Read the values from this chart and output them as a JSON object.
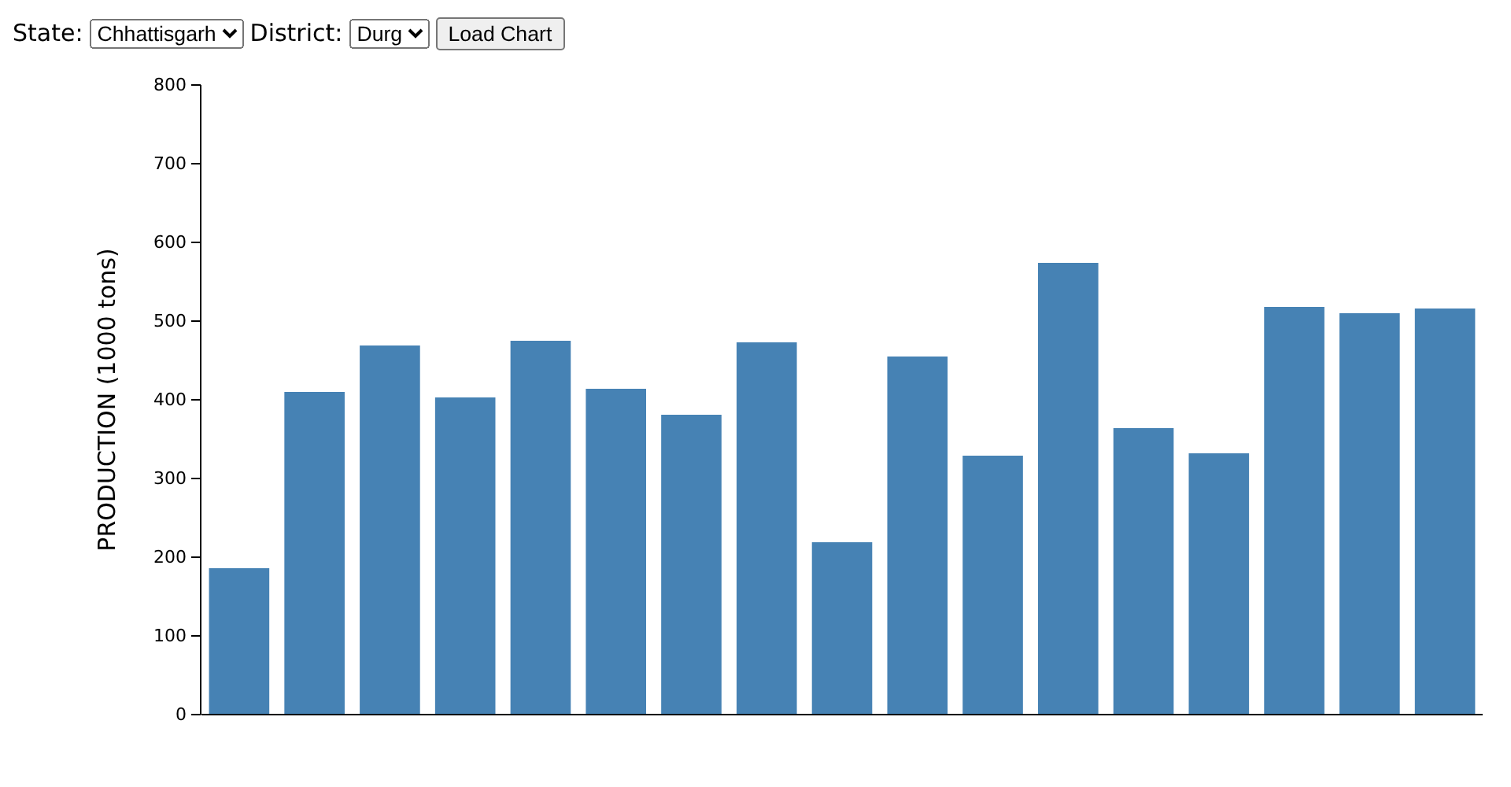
{
  "chart_data": {
    "type": "bar",
    "ylabel": "PRODUCTION (1000 tons)",
    "annotations": [
      "State:",
      "Chhattisgarh",
      "District:",
      "Durg",
      "Load Chart"
    ],
    "categories": [
      null,
      null,
      null,
      null,
      null,
      null,
      null,
      null,
      null,
      null,
      null,
      null,
      null,
      null,
      null,
      null,
      null
    ],
    "values": [
      186,
      410,
      469,
      403,
      475,
      414,
      381,
      473,
      219,
      455,
      329,
      574,
      364,
      332,
      518,
      510,
      516
    ],
    "color": "#4682b4",
    "ylim": [
      0,
      800
    ],
    "yticks": [
      0,
      100,
      200,
      300,
      400,
      500,
      600,
      700,
      800
    ],
    "grid": false
  }
}
